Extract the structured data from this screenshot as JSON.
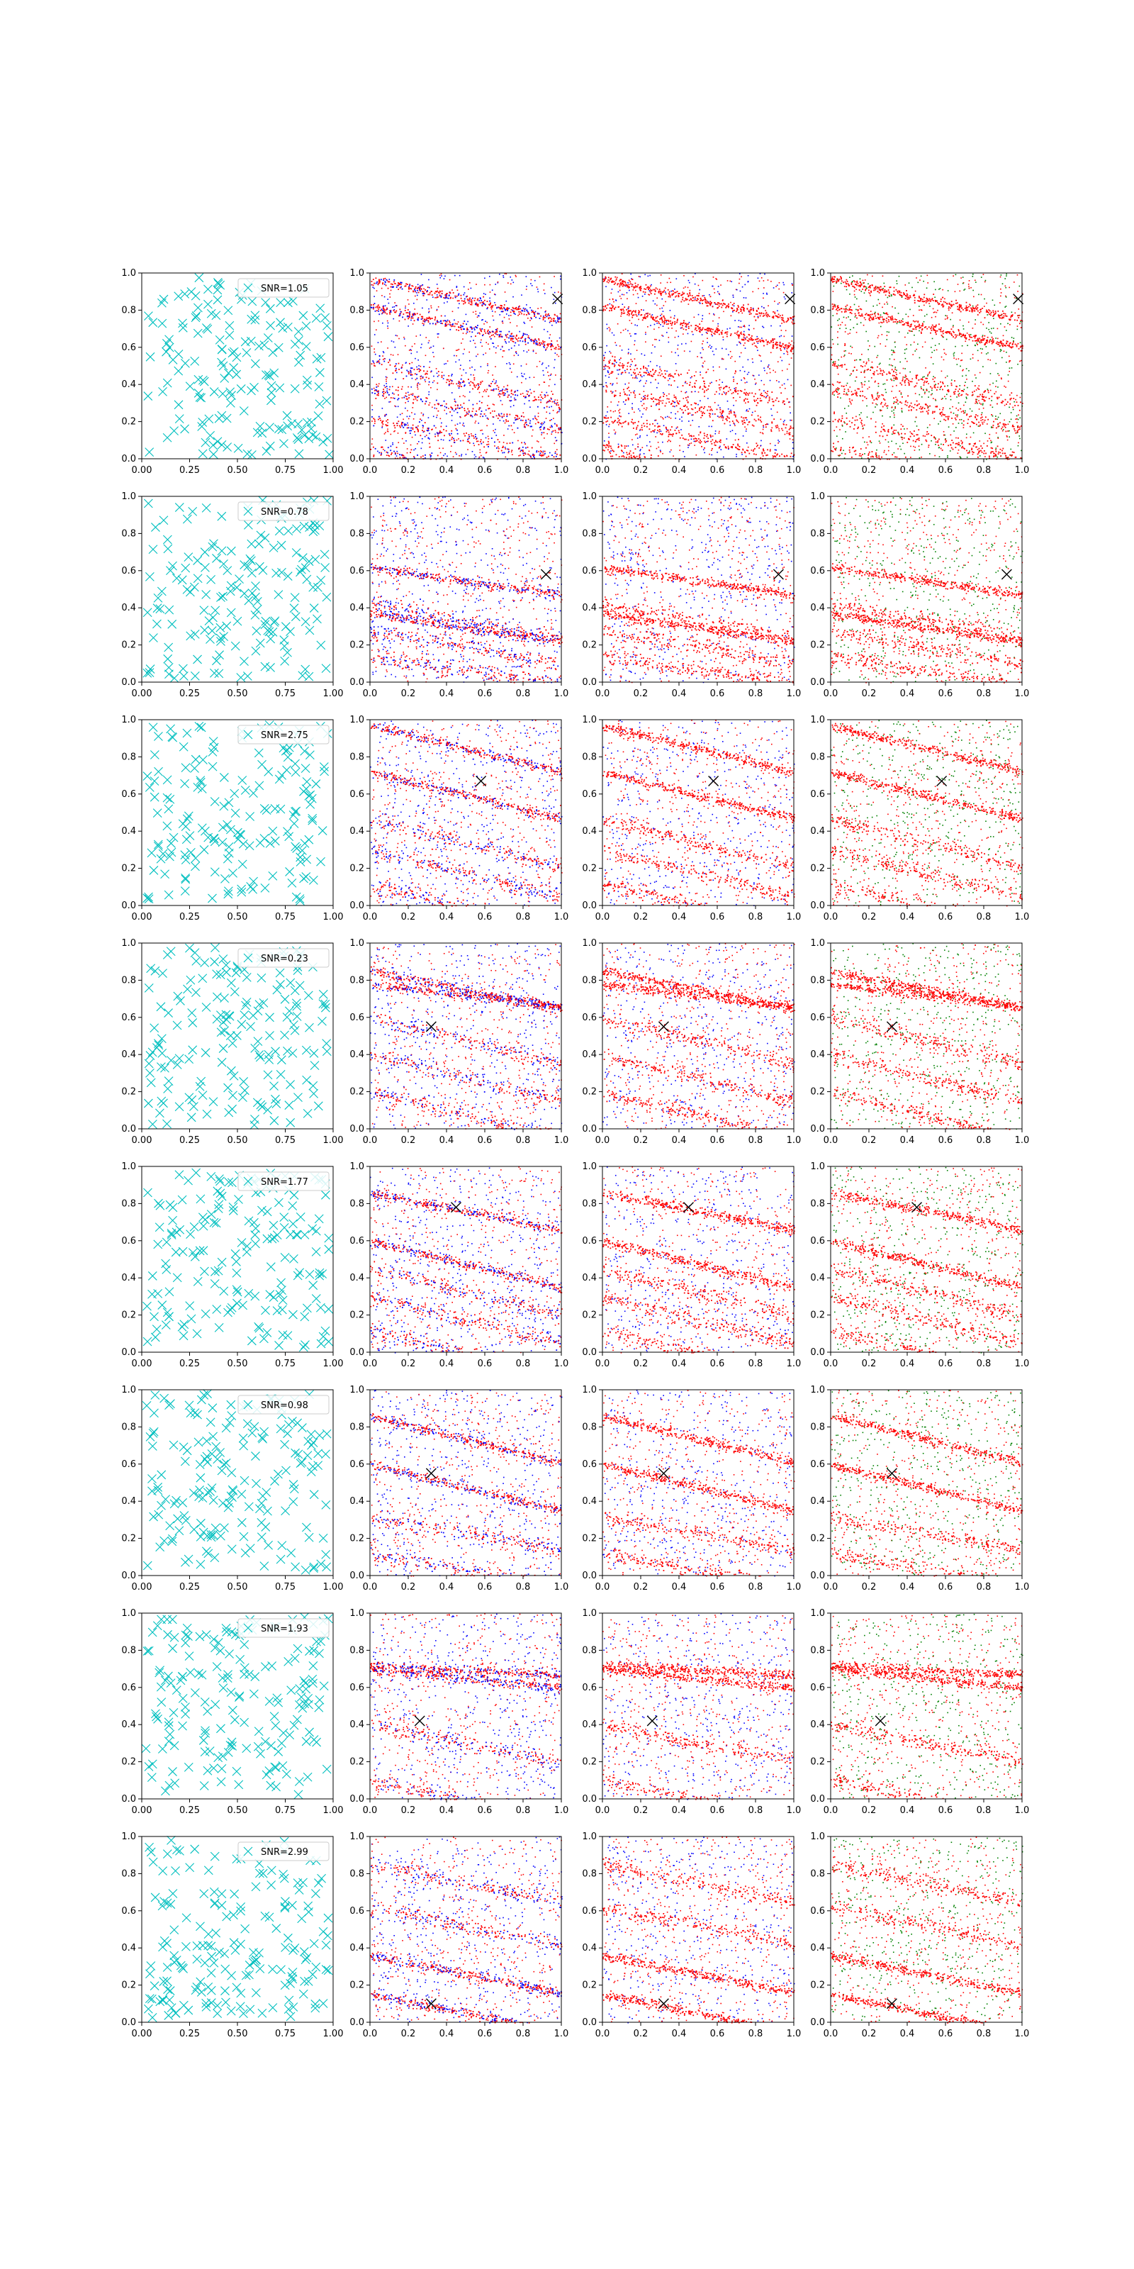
{
  "chart_data": {
    "type": "scatter",
    "rows": 8,
    "cols": 4,
    "colors": {
      "candidates": "#00bfbf",
      "primary": "#ff0000",
      "secondary_blue": "#0000ff",
      "secondary_green": "#008000",
      "source_marker": "#000000"
    },
    "first_column": {
      "xlim": [
        0,
        1
      ],
      "ylim": [
        0,
        1
      ],
      "xticks": [
        "0.00",
        "0.25",
        "0.50",
        "0.75",
        "1.00"
      ],
      "yticks": [
        "0.0",
        "0.2",
        "0.4",
        "0.6",
        "0.8",
        "1.0"
      ],
      "marker": "x",
      "legend_placement": "upper right",
      "legend_labels": [
        "SNR=1.05",
        "SNR=0.78",
        "SNR=2.75",
        "SNR=0.23",
        "SNR=1.77",
        "SNR=0.98",
        "SNR=1.93",
        "SNR=2.99"
      ]
    },
    "other_columns": {
      "xlim": [
        0,
        1
      ],
      "ylim": [
        0,
        1
      ],
      "xticks": [
        "0.0",
        "0.2",
        "0.4",
        "0.6",
        "0.8",
        "1.0"
      ],
      "yticks": [
        "0.0",
        "0.2",
        "0.4",
        "0.6",
        "0.8",
        "1.0"
      ],
      "column_colors": [
        [
          "primary",
          "secondary_blue"
        ],
        [
          "primary",
          "secondary_blue"
        ],
        [
          "primary",
          "secondary_green"
        ]
      ]
    },
    "source_positions": [
      {
        "x": 0.98,
        "y": 0.86
      },
      {
        "x": 0.92,
        "y": 0.58
      },
      {
        "x": 0.58,
        "y": 0.67
      },
      {
        "x": 0.32,
        "y": 0.55
      },
      {
        "x": 0.45,
        "y": 0.78
      },
      {
        "x": 0.32,
        "y": 0.55
      },
      {
        "x": 0.26,
        "y": 0.42
      },
      {
        "x": 0.32,
        "y": 0.1
      }
    ],
    "bands": [
      [
        [
          0.97,
          0.22
        ],
        [
          0.82,
          0.22
        ],
        [
          0.52,
          0.22
        ],
        [
          0.38,
          0.22
        ],
        [
          0.22,
          0.22
        ],
        [
          0.06,
          0.22
        ]
      ],
      [
        [
          0.62,
          0.15
        ],
        [
          0.37,
          0.15
        ],
        [
          0.14,
          0.15
        ],
        [
          0.42,
          0.18
        ],
        [
          0.28,
          0.18
        ]
      ],
      [
        [
          0.97,
          0.25
        ],
        [
          0.72,
          0.25
        ],
        [
          0.46,
          0.25
        ],
        [
          0.3,
          0.25
        ],
        [
          0.12,
          0.25
        ]
      ],
      [
        [
          0.85,
          0.2
        ],
        [
          0.78,
          0.12
        ],
        [
          0.6,
          0.25
        ],
        [
          0.4,
          0.25
        ],
        [
          0.2,
          0.25
        ]
      ],
      [
        [
          0.86,
          0.2
        ],
        [
          0.6,
          0.25
        ],
        [
          0.45,
          0.25
        ],
        [
          0.3,
          0.25
        ],
        [
          0.12,
          0.25
        ]
      ],
      [
        [
          0.86,
          0.25
        ],
        [
          0.6,
          0.25
        ],
        [
          0.32,
          0.18
        ],
        [
          0.12,
          0.18
        ]
      ],
      [
        [
          0.7,
          0.1
        ],
        [
          0.72,
          0.05
        ],
        [
          0.4,
          0.2
        ],
        [
          0.1,
          0.2
        ]
      ],
      [
        [
          0.15,
          0.2
        ],
        [
          0.36,
          0.2
        ],
        [
          0.62,
          0.2
        ],
        [
          0.85,
          0.2
        ]
      ]
    ]
  }
}
